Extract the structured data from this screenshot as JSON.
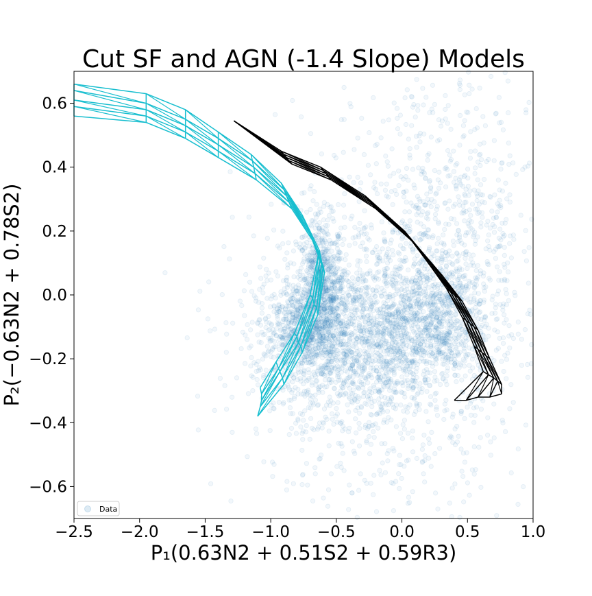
{
  "chart_data": {
    "type": "scatter",
    "title": "Cut SF and AGN (-1.4 Slope) Models",
    "xlabel": "P₁(0.63N2 + 0.51S2 + 0.59R3)",
    "ylabel": "P₂(−0.63N2 + 0.78S2)",
    "xlim": [
      -2.5,
      1.0
    ],
    "ylim": [
      -0.7,
      0.7
    ],
    "x_ticks": [
      -2.5,
      -2.0,
      -1.5,
      -1.0,
      -0.5,
      0.0,
      0.5,
      1.0
    ],
    "x_tick_labels": [
      "−2.5",
      "−2.0",
      "−1.5",
      "−1.0",
      "−0.5",
      "0.0",
      "0.5",
      "1.0"
    ],
    "y_ticks": [
      0.6,
      0.4,
      0.2,
      0.0,
      -0.2,
      -0.4,
      -0.6
    ],
    "y_tick_labels": [
      "0.6",
      "0.4",
      "0.2",
      "0.0",
      "−0.2",
      "−0.4",
      "−0.6"
    ],
    "grid": false,
    "legend": {
      "placement": "lower-left",
      "entries": [
        "Data"
      ]
    },
    "colors": {
      "data": "#1f77b4",
      "sf_model": "#17becf",
      "agn_model": "#000000"
    },
    "series": [
      {
        "name": "Data",
        "kind": "scatter-cloud",
        "clusters": [
          {
            "center": [
              -0.62,
              0.02
            ],
            "spread": [
              0.09,
              0.11
            ],
            "count": 700
          },
          {
            "center": [
              -0.75,
              -0.12
            ],
            "spread": [
              0.18,
              0.08
            ],
            "count": 650
          },
          {
            "center": [
              -0.3,
              -0.14
            ],
            "spread": [
              0.3,
              0.12
            ],
            "count": 900
          },
          {
            "center": [
              0.25,
              -0.07
            ],
            "spread": [
              0.22,
              0.1
            ],
            "count": 750
          },
          {
            "center": [
              0.35,
              0.25
            ],
            "spread": [
              0.35,
              0.25
            ],
            "count": 600
          },
          {
            "center": [
              -0.15,
              -0.15
            ],
            "spread": [
              0.55,
              0.25
            ],
            "count": 1200
          }
        ]
      },
      {
        "kind": "grid-model",
        "color": "#17becf",
        "rows": [
          [
            [
              -2.5,
              0.66
            ],
            [
              -1.95,
              0.63
            ],
            [
              -1.65,
              0.58
            ],
            [
              -1.4,
              0.51
            ],
            [
              -1.15,
              0.44
            ],
            [
              -0.92,
              0.35
            ],
            [
              -0.76,
              0.25
            ],
            [
              -0.63,
              0.14
            ],
            [
              -0.7,
              0.0
            ],
            [
              -0.82,
              -0.12
            ],
            [
              -0.96,
              -0.21
            ],
            [
              -1.08,
              -0.29
            ]
          ],
          [
            [
              -2.5,
              0.64
            ],
            [
              -1.95,
              0.6
            ],
            [
              -1.65,
              0.55
            ],
            [
              -1.4,
              0.49
            ],
            [
              -1.14,
              0.42
            ],
            [
              -0.9,
              0.33
            ],
            [
              -0.74,
              0.23
            ],
            [
              -0.62,
              0.12
            ],
            [
              -0.68,
              -0.01
            ],
            [
              -0.8,
              -0.13
            ],
            [
              -0.94,
              -0.23
            ],
            [
              -1.07,
              -0.31
            ]
          ],
          [
            [
              -2.5,
              0.61
            ],
            [
              -1.95,
              0.58
            ],
            [
              -1.65,
              0.53
            ],
            [
              -1.4,
              0.47
            ],
            [
              -1.13,
              0.4
            ],
            [
              -0.88,
              0.31
            ],
            [
              -0.72,
              0.21
            ],
            [
              -0.61,
              0.1
            ],
            [
              -0.67,
              -0.03
            ],
            [
              -0.79,
              -0.15
            ],
            [
              -0.93,
              -0.24
            ],
            [
              -1.07,
              -0.33
            ]
          ],
          [
            [
              -2.5,
              0.59
            ],
            [
              -1.95,
              0.56
            ],
            [
              -1.65,
              0.51
            ],
            [
              -1.4,
              0.45
            ],
            [
              -1.12,
              0.38
            ],
            [
              -0.86,
              0.29
            ],
            [
              -0.7,
              0.19
            ],
            [
              -0.6,
              0.09
            ],
            [
              -0.65,
              -0.04
            ],
            [
              -0.77,
              -0.16
            ],
            [
              -0.91,
              -0.26
            ],
            [
              -1.08,
              -0.35
            ]
          ],
          [
            [
              -2.5,
              0.56
            ],
            [
              -1.95,
              0.54
            ],
            [
              -1.65,
              0.49
            ],
            [
              -1.4,
              0.43
            ],
            [
              -1.11,
              0.36
            ],
            [
              -0.84,
              0.27
            ],
            [
              -0.68,
              0.17
            ],
            [
              -0.59,
              0.07
            ],
            [
              -0.64,
              -0.06
            ],
            [
              -0.76,
              -0.18
            ],
            [
              -0.9,
              -0.28
            ],
            [
              -1.1,
              -0.38
            ]
          ]
        ]
      },
      {
        "kind": "grid-model",
        "color": "#000000",
        "rows": [
          [
            [
              -1.28,
              0.545
            ],
            [
              -0.92,
              0.45
            ],
            [
              -0.62,
              0.4
            ],
            [
              -0.28,
              0.31
            ],
            [
              0.02,
              0.2
            ],
            [
              0.2,
              0.1
            ],
            [
              0.34,
              0.02
            ],
            [
              0.46,
              -0.07
            ],
            [
              0.55,
              -0.16
            ],
            [
              0.62,
              -0.24
            ],
            [
              0.4,
              -0.33
            ]
          ],
          [
            [
              -1.28,
              0.545
            ],
            [
              -0.9,
              0.44
            ],
            [
              -0.6,
              0.39
            ],
            [
              -0.26,
              0.3
            ],
            [
              0.04,
              0.19
            ],
            [
              0.22,
              0.09
            ],
            [
              0.37,
              0.01
            ],
            [
              0.49,
              -0.08
            ],
            [
              0.58,
              -0.17
            ],
            [
              0.66,
              -0.25
            ],
            [
              0.49,
              -0.33
            ]
          ],
          [
            [
              -1.28,
              0.545
            ],
            [
              -0.88,
              0.43
            ],
            [
              -0.58,
              0.38
            ],
            [
              -0.24,
              0.29
            ],
            [
              0.06,
              0.18
            ],
            [
              0.25,
              0.08
            ],
            [
              0.4,
              0.0
            ],
            [
              0.52,
              -0.09
            ],
            [
              0.61,
              -0.18
            ],
            [
              0.7,
              -0.26
            ],
            [
              0.58,
              -0.32
            ]
          ],
          [
            [
              -1.28,
              0.545
            ],
            [
              -0.86,
              0.42
            ],
            [
              -0.56,
              0.37
            ],
            [
              -0.22,
              0.28
            ],
            [
              0.08,
              0.17
            ],
            [
              0.28,
              0.07
            ],
            [
              0.43,
              -0.01
            ],
            [
              0.55,
              -0.1
            ],
            [
              0.64,
              -0.19
            ],
            [
              0.73,
              -0.27
            ],
            [
              0.67,
              -0.32
            ]
          ],
          [
            [
              -1.28,
              0.545
            ],
            [
              -0.84,
              0.41
            ],
            [
              -0.54,
              0.36
            ],
            [
              -0.2,
              0.27
            ],
            [
              0.1,
              0.16
            ],
            [
              0.31,
              0.06
            ],
            [
              0.46,
              -0.02
            ],
            [
              0.58,
              -0.11
            ],
            [
              0.67,
              -0.2
            ],
            [
              0.76,
              -0.28
            ],
            [
              0.76,
              -0.31
            ]
          ]
        ]
      }
    ]
  }
}
